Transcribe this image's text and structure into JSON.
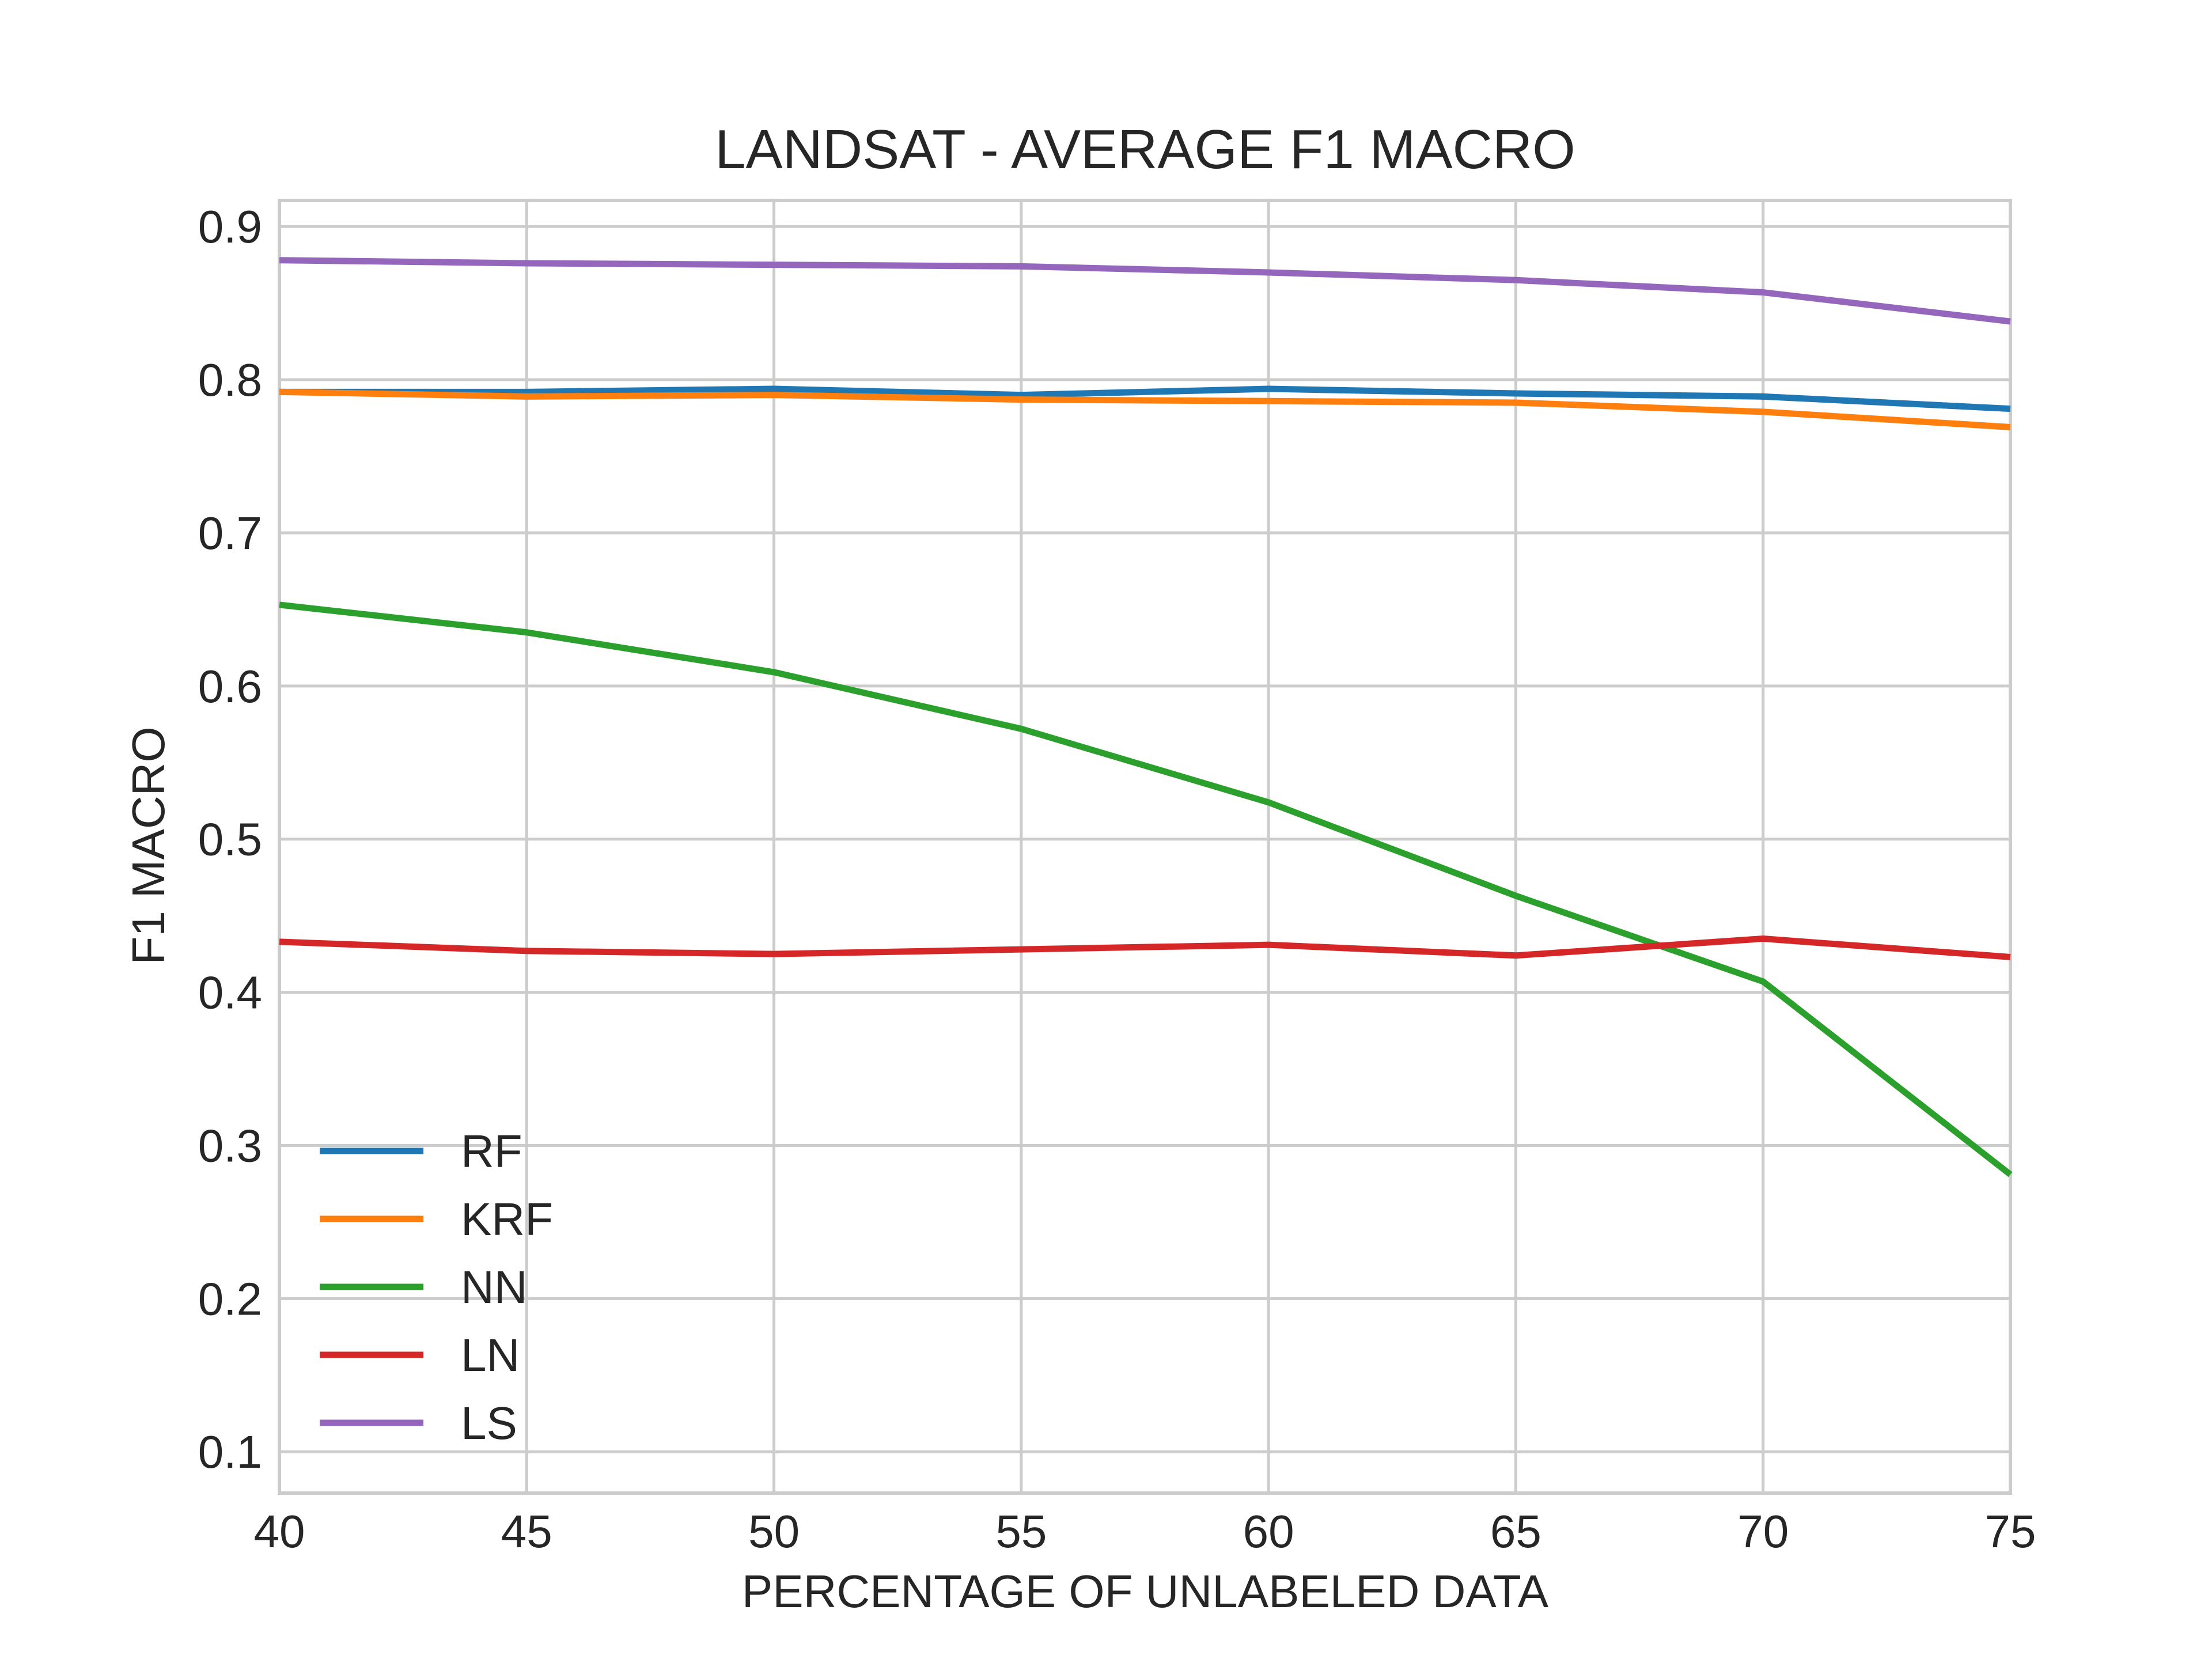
{
  "chart_data": {
    "type": "line",
    "title": "LANDSAT - AVERAGE F1 MACRO",
    "xlabel": "PERCENTAGE OF UNLABELED DATA",
    "ylabel": "F1 MACRO",
    "xlim": [
      40,
      75
    ],
    "ylim": [
      0.073,
      0.917
    ],
    "x_ticks": [
      40,
      45,
      50,
      55,
      60,
      65,
      70,
      75
    ],
    "y_ticks": [
      0.1,
      0.2,
      0.3,
      0.4,
      0.5,
      0.6,
      0.7,
      0.8,
      0.9
    ],
    "x_tick_labels": [
      "40",
      "45",
      "50",
      "55",
      "60",
      "65",
      "70",
      "75"
    ],
    "y_tick_labels": [
      "0.1",
      "0.2",
      "0.3",
      "0.4",
      "0.5",
      "0.6",
      "0.7",
      "0.8",
      "0.9"
    ],
    "grid": true,
    "legend_position": "lower-left",
    "x": [
      40,
      45,
      50,
      55,
      60,
      65,
      70,
      75
    ],
    "series": [
      {
        "name": "RF",
        "color": "#1f77b4",
        "values": [
          0.792,
          0.792,
          0.794,
          0.79,
          0.794,
          0.791,
          0.789,
          0.781
        ]
      },
      {
        "name": "KRF",
        "color": "#ff7f0e",
        "values": [
          0.792,
          0.789,
          0.79,
          0.787,
          0.786,
          0.785,
          0.779,
          0.769
        ]
      },
      {
        "name": "NN",
        "color": "#2ca02c",
        "values": [
          0.653,
          0.635,
          0.609,
          0.572,
          0.524,
          0.463,
          0.407,
          0.281
        ]
      },
      {
        "name": "LN",
        "color": "#d62728",
        "values": [
          0.433,
          0.427,
          0.425,
          0.428,
          0.431,
          0.424,
          0.435,
          0.423
        ]
      },
      {
        "name": "LS",
        "color": "#9467bd",
        "values": [
          0.878,
          0.876,
          0.875,
          0.874,
          0.87,
          0.865,
          0.857,
          0.838
        ]
      }
    ]
  }
}
